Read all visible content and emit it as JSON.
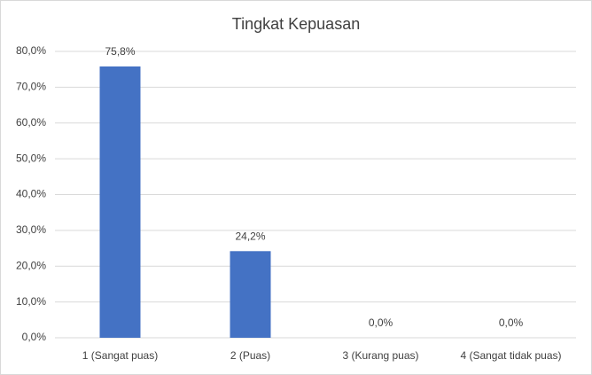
{
  "chart_data": {
    "type": "bar",
    "title": "Tingkat Kepuasan",
    "categories": [
      "1 (Sangat puas)",
      "2 (Puas)",
      "3 (Kurang puas)",
      "4 (Sangat tidak puas)"
    ],
    "values": [
      75.8,
      24.2,
      0,
      0
    ],
    "value_labels": [
      "75,8%",
      "24,2%",
      "0,0%",
      "0,0%"
    ],
    "color": "#4472c4",
    "ylim": [
      0,
      80
    ],
    "yticks": [
      {
        "value": 0,
        "label": "0,0%"
      },
      {
        "value": 10,
        "label": "10,0%"
      },
      {
        "value": 20,
        "label": "20,0%"
      },
      {
        "value": 30,
        "label": "30,0%"
      },
      {
        "value": 40,
        "label": "40,0%"
      },
      {
        "value": 50,
        "label": "50,0%"
      },
      {
        "value": 60,
        "label": "60,0%"
      },
      {
        "value": 70,
        "label": "70,0%"
      },
      {
        "value": 80,
        "label": "80,0%"
      }
    ],
    "grid": true
  }
}
